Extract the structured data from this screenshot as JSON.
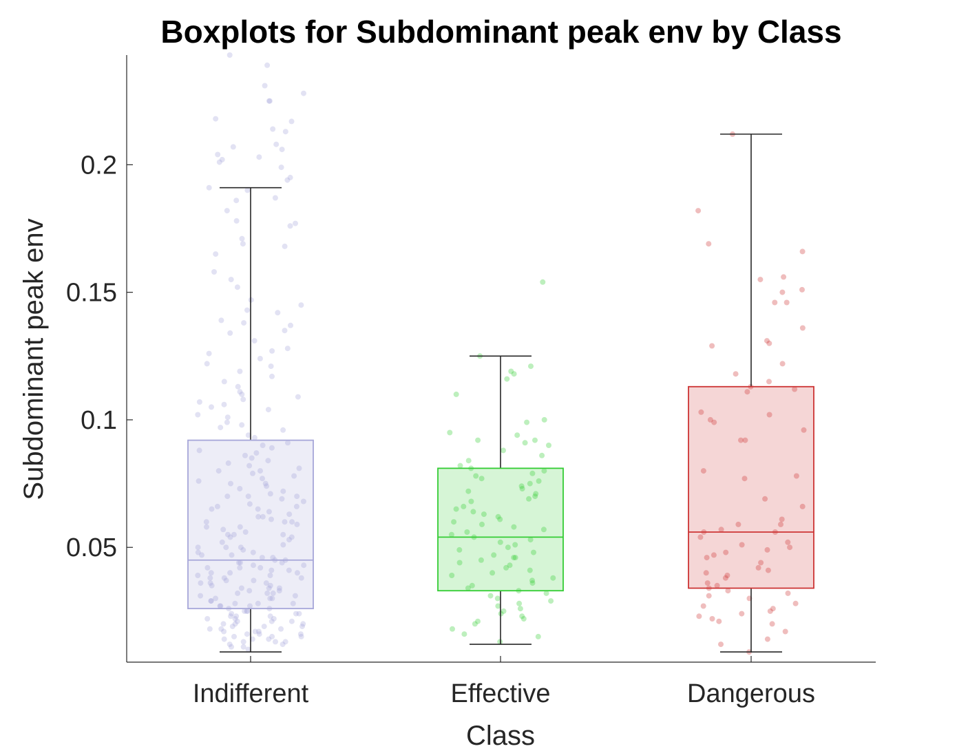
{
  "chart_data": {
    "type": "box",
    "title": "Boxplots for Subdominant peak env by Class",
    "xlabel": "Class",
    "ylabel": "Subdominant peak env",
    "ylim": [
      0.005,
      0.243
    ],
    "yticks": [
      0.05,
      0.1,
      0.15,
      0.2
    ],
    "ytick_labels": [
      "0.05",
      "0.1",
      "0.15",
      "0.2"
    ],
    "grid": false,
    "categories": [
      "Indifferent",
      "Effective",
      "Dangerous"
    ],
    "boxes": [
      {
        "category": "Indifferent",
        "whisker_low": 0.009,
        "q1": 0.026,
        "median": 0.045,
        "q3": 0.092,
        "whisker_high": 0.191,
        "color": "#a6a6d9",
        "points": [
          0.239,
          0.243,
          0.231,
          0.228,
          0.225,
          0.225,
          0.218,
          0.217,
          0.214,
          0.213,
          0.208,
          0.207,
          0.206,
          0.204,
          0.203,
          0.202,
          0.201,
          0.199,
          0.195,
          0.194,
          0.191,
          0.19,
          0.187,
          0.186,
          0.182,
          0.178,
          0.177,
          0.176,
          0.171,
          0.169,
          0.168,
          0.165,
          0.158,
          0.155,
          0.152,
          0.147,
          0.145,
          0.143,
          0.142,
          0.139,
          0.138,
          0.137,
          0.135,
          0.134,
          0.131,
          0.128,
          0.127,
          0.126,
          0.124,
          0.122,
          0.121,
          0.119,
          0.117,
          0.115,
          0.113,
          0.111,
          0.11,
          0.109,
          0.108,
          0.107,
          0.106,
          0.105,
          0.104,
          0.102,
          0.101,
          0.099,
          0.098,
          0.097,
          0.096,
          0.094,
          0.093,
          0.091,
          0.09,
          0.089,
          0.088,
          0.087,
          0.086,
          0.085,
          0.084,
          0.083,
          0.082,
          0.081,
          0.08,
          0.079,
          0.078,
          0.077,
          0.076,
          0.075,
          0.074,
          0.073,
          0.072,
          0.071,
          0.07,
          0.069,
          0.068,
          0.067,
          0.066,
          0.065,
          0.064,
          0.063,
          0.062,
          0.061,
          0.06,
          0.059,
          0.058,
          0.057,
          0.056,
          0.055,
          0.054,
          0.053,
          0.052,
          0.051,
          0.05,
          0.049,
          0.048,
          0.047,
          0.046,
          0.045,
          0.044,
          0.043,
          0.042,
          0.041,
          0.04,
          0.039,
          0.038,
          0.037,
          0.036,
          0.035,
          0.034,
          0.033,
          0.032,
          0.031,
          0.03,
          0.029,
          0.028,
          0.027,
          0.026,
          0.025,
          0.024,
          0.023,
          0.022,
          0.021,
          0.02,
          0.019,
          0.018,
          0.017,
          0.016,
          0.015,
          0.014,
          0.013,
          0.012,
          0.011,
          0.01,
          0.07,
          0.065,
          0.06,
          0.055,
          0.05,
          0.046,
          0.044,
          0.042,
          0.04,
          0.038,
          0.036,
          0.034,
          0.032,
          0.03,
          0.028,
          0.027,
          0.025,
          0.024,
          0.023,
          0.022,
          0.021,
          0.02,
          0.019,
          0.018,
          0.017,
          0.016,
          0.015,
          0.014,
          0.013,
          0.012,
          0.06,
          0.055,
          0.048,
          0.045,
          0.043,
          0.041,
          0.039,
          0.037,
          0.035,
          0.033,
          0.031,
          0.029,
          0.027,
          0.025,
          0.023,
          0.021,
          0.019,
          0.017,
          0.015,
          0.013,
          0.011,
          0.08,
          0.075,
          0.07,
          0.066,
          0.062,
          0.058,
          0.054,
          0.05,
          0.047,
          0.044,
          0.042,
          0.04,
          0.038,
          0.036,
          0.034,
          0.032,
          0.03,
          0.028,
          0.026,
          0.024,
          0.022,
          0.02,
          0.018,
          0.016,
          0.014
        ]
      },
      {
        "category": "Effective",
        "whisker_low": 0.012,
        "q1": 0.033,
        "median": 0.054,
        "q3": 0.081,
        "whisker_high": 0.125,
        "color": "#33cc33",
        "points": [
          0.154,
          0.125,
          0.121,
          0.119,
          0.118,
          0.116,
          0.11,
          0.1,
          0.099,
          0.095,
          0.094,
          0.092,
          0.092,
          0.091,
          0.09,
          0.088,
          0.086,
          0.084,
          0.082,
          0.081,
          0.08,
          0.079,
          0.078,
          0.077,
          0.076,
          0.075,
          0.074,
          0.073,
          0.072,
          0.071,
          0.07,
          0.069,
          0.068,
          0.066,
          0.065,
          0.064,
          0.063,
          0.062,
          0.061,
          0.06,
          0.059,
          0.058,
          0.057,
          0.056,
          0.055,
          0.054,
          0.053,
          0.052,
          0.051,
          0.05,
          0.049,
          0.048,
          0.047,
          0.046,
          0.046,
          0.045,
          0.044,
          0.043,
          0.042,
          0.041,
          0.04,
          0.039,
          0.038,
          0.037,
          0.036,
          0.035,
          0.034,
          0.033,
          0.032,
          0.031,
          0.03,
          0.029,
          0.028,
          0.027,
          0.026,
          0.025,
          0.024,
          0.023,
          0.022,
          0.021,
          0.02,
          0.018,
          0.016,
          0.015,
          0.013
        ]
      },
      {
        "category": "Dangerous",
        "whisker_low": 0.009,
        "q1": 0.034,
        "median": 0.056,
        "q3": 0.113,
        "whisker_high": 0.212,
        "color": "#cc3333",
        "points": [
          0.212,
          0.182,
          0.169,
          0.166,
          0.156,
          0.155,
          0.151,
          0.15,
          0.146,
          0.146,
          0.136,
          0.131,
          0.13,
          0.129,
          0.122,
          0.118,
          0.115,
          0.113,
          0.112,
          0.111,
          0.103,
          0.102,
          0.1,
          0.099,
          0.096,
          0.092,
          0.092,
          0.08,
          0.078,
          0.077,
          0.069,
          0.066,
          0.061,
          0.059,
          0.059,
          0.057,
          0.056,
          0.056,
          0.054,
          0.052,
          0.051,
          0.05,
          0.049,
          0.048,
          0.047,
          0.046,
          0.044,
          0.042,
          0.041,
          0.04,
          0.039,
          0.038,
          0.036,
          0.035,
          0.034,
          0.033,
          0.032,
          0.031,
          0.03,
          0.028,
          0.027,
          0.026,
          0.025,
          0.024,
          0.023,
          0.022,
          0.021,
          0.02,
          0.017,
          0.014,
          0.012,
          0.009
        ]
      }
    ]
  }
}
